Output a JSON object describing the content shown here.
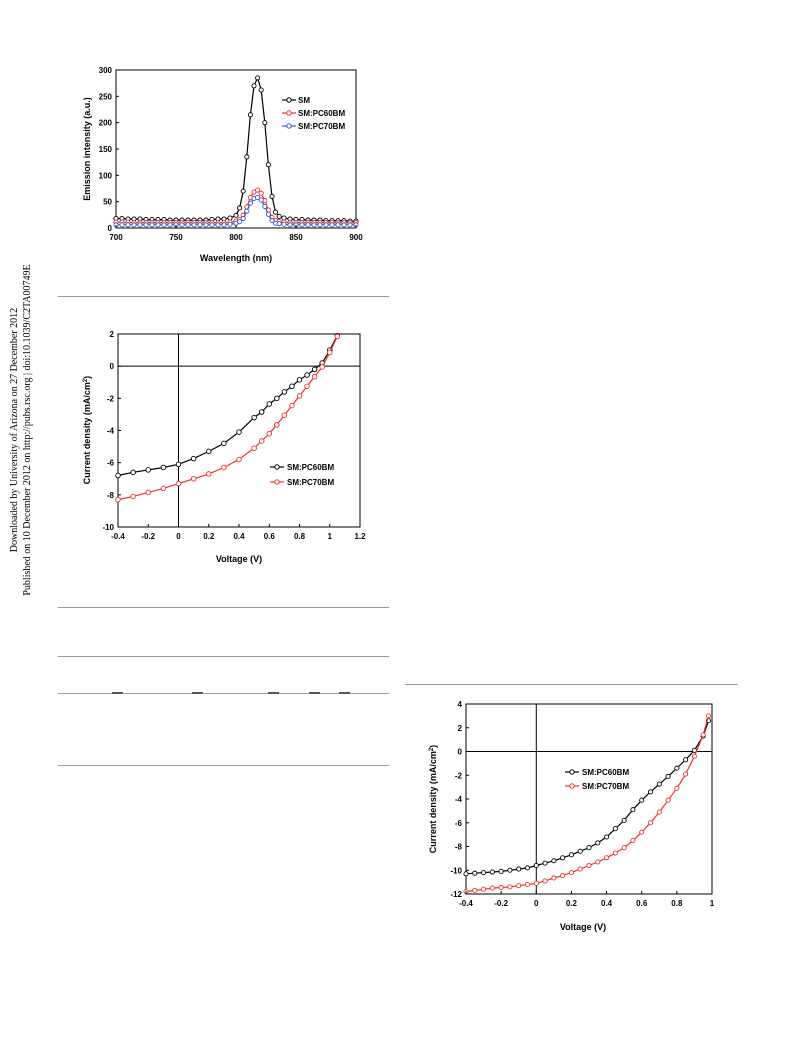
{
  "sidebar": {
    "line1": "Downloaded by University of Arizona on 27 December 2012",
    "line2": "Published on 10 December 2012 on http://pubs.rsc.org | doi:10.1039/C2TA00749E"
  },
  "figures": {
    "emission": {
      "ylabel": "Emission intensity (a.u.)",
      "xlabel": "Wavelength (nm)",
      "xticks": [
        "700",
        "750",
        "800",
        "850",
        "900"
      ],
      "yticks": [
        "0",
        "50",
        "100",
        "150",
        "200",
        "250",
        "300"
      ]
    },
    "jv1": {
      "ylabel": "Current density (mA/cm",
      "ylabel_sup": "2",
      "ylabel_close": ")",
      "xlabel": "Voltage (V)",
      "xticks": [
        "-0.4",
        "-0.2",
        "0",
        "0.2",
        "0.4",
        "0.6",
        "0.8",
        "1",
        "1.2"
      ],
      "yticks": [
        "2",
        "0",
        "-2",
        "-4",
        "-6",
        "-8",
        "-10"
      ]
    },
    "jv2": {
      "ylabel": "Current density (mA/cm",
      "ylabel_sup": "2",
      "ylabel_close": ")",
      "xlabel": "Voltage (V)",
      "xticks": [
        "-0.4",
        "-0.2",
        "0",
        "0.2",
        "0.4",
        "0.6",
        "0.8",
        "1"
      ],
      "yticks": [
        "4",
        "2",
        "0",
        "-2",
        "-4",
        "-6",
        "-8",
        "-10",
        "-12"
      ]
    }
  },
  "chart_data": [
    {
      "type": "line",
      "xlabel": "Wavelength (nm)",
      "ylabel": "Emission intensity (a.u.)",
      "xlim": [
        700,
        900
      ],
      "ylim": [
        0,
        300
      ],
      "grid": false,
      "legend_position": "top-right",
      "series": [
        {
          "name": "SM",
          "color": "#000000",
          "x": [
            700,
            705,
            710,
            715,
            720,
            725,
            730,
            735,
            740,
            745,
            750,
            755,
            760,
            765,
            770,
            775,
            780,
            785,
            790,
            795,
            800,
            803,
            806,
            809,
            812,
            815,
            818,
            821,
            824,
            827,
            830,
            833,
            836,
            840,
            845,
            850,
            855,
            860,
            865,
            870,
            875,
            880,
            885,
            890,
            895,
            900
          ],
          "y": [
            18,
            18,
            17,
            17,
            17,
            16,
            16,
            16,
            16,
            15,
            15,
            15,
            15,
            15,
            15,
            15,
            16,
            17,
            17,
            19,
            24,
            38,
            70,
            135,
            215,
            270,
            285,
            262,
            200,
            120,
            60,
            30,
            22,
            19,
            17,
            16,
            16,
            15,
            15,
            15,
            14,
            14,
            14,
            14,
            13,
            13
          ]
        },
        {
          "name": "SM:PC60BM",
          "color": "#e8332e",
          "x": [
            700,
            705,
            710,
            715,
            720,
            725,
            730,
            735,
            740,
            745,
            750,
            755,
            760,
            765,
            770,
            775,
            780,
            785,
            790,
            795,
            800,
            803,
            806,
            809,
            812,
            815,
            818,
            821,
            824,
            827,
            830,
            833,
            836,
            840,
            845,
            850,
            855,
            860,
            865,
            870,
            875,
            880,
            885,
            890,
            895,
            900
          ],
          "y": [
            11,
            11,
            11,
            10,
            10,
            10,
            10,
            10,
            10,
            10,
            10,
            10,
            10,
            10,
            10,
            10,
            10,
            10,
            10,
            11,
            13,
            16,
            24,
            40,
            58,
            68,
            72,
            66,
            52,
            34,
            20,
            14,
            12,
            11,
            10,
            10,
            10,
            10,
            10,
            10,
            10,
            10,
            10,
            10,
            10,
            10
          ]
        },
        {
          "name": "SM:PC70BM",
          "color": "#3c55c8",
          "x": [
            700,
            705,
            710,
            715,
            720,
            725,
            730,
            735,
            740,
            745,
            750,
            755,
            760,
            765,
            770,
            775,
            780,
            785,
            790,
            795,
            800,
            803,
            806,
            809,
            812,
            815,
            818,
            821,
            824,
            827,
            830,
            833,
            836,
            840,
            845,
            850,
            855,
            860,
            865,
            870,
            875,
            880,
            885,
            890,
            895,
            900
          ],
          "y": [
            6,
            6,
            6,
            6,
            6,
            6,
            6,
            6,
            6,
            6,
            6,
            6,
            6,
            6,
            6,
            6,
            6,
            6,
            6,
            7,
            9,
            12,
            18,
            32,
            47,
            56,
            58,
            53,
            41,
            26,
            14,
            9,
            8,
            7,
            6,
            6,
            6,
            6,
            6,
            6,
            6,
            6,
            6,
            6,
            6,
            6
          ]
        }
      ]
    },
    {
      "type": "line",
      "xlabel": "Voltage (V)",
      "ylabel": "Current density (mA/cm2)",
      "xlim": [
        -0.4,
        1.2
      ],
      "ylim": [
        -10,
        2
      ],
      "grid": false,
      "legend_position": "right",
      "series": [
        {
          "name": "SM:PC60BM",
          "color": "#000000",
          "x": [
            -0.4,
            -0.3,
            -0.2,
            -0.1,
            0,
            0.1,
            0.2,
            0.3,
            0.4,
            0.5,
            0.55,
            0.6,
            0.65,
            0.7,
            0.75,
            0.8,
            0.85,
            0.9,
            0.95,
            1.0,
            1.05
          ],
          "y": [
            -6.8,
            -6.6,
            -6.45,
            -6.3,
            -6.1,
            -5.75,
            -5.3,
            -4.8,
            -4.1,
            -3.2,
            -2.85,
            -2.35,
            -2.0,
            -1.6,
            -1.25,
            -0.85,
            -0.55,
            -0.2,
            0.2,
            1.0,
            1.9
          ]
        },
        {
          "name": "SM:PC70BM",
          "color": "#e8332e",
          "x": [
            -0.4,
            -0.3,
            -0.2,
            -0.1,
            0,
            0.1,
            0.2,
            0.3,
            0.4,
            0.5,
            0.55,
            0.6,
            0.65,
            0.7,
            0.75,
            0.8,
            0.85,
            0.9,
            0.95,
            1.0,
            1.05
          ],
          "y": [
            -8.3,
            -8.1,
            -7.85,
            -7.6,
            -7.3,
            -7.0,
            -6.7,
            -6.3,
            -5.8,
            -5.1,
            -4.65,
            -4.2,
            -3.65,
            -3.05,
            -2.45,
            -1.85,
            -1.25,
            -0.65,
            -0.05,
            0.85,
            1.85
          ]
        }
      ]
    },
    {
      "type": "line",
      "xlabel": "Voltage (V)",
      "ylabel": "Current density (mA/cm2)",
      "xlim": [
        -0.4,
        1.0
      ],
      "ylim": [
        -12,
        4
      ],
      "grid": false,
      "legend_position": "right",
      "series": [
        {
          "name": "SM:PC60BM",
          "color": "#000000",
          "x": [
            -0.4,
            -0.35,
            -0.3,
            -0.25,
            -0.2,
            -0.15,
            -0.1,
            -0.05,
            0,
            0.05,
            0.1,
            0.15,
            0.2,
            0.25,
            0.3,
            0.35,
            0.4,
            0.45,
            0.5,
            0.55,
            0.6,
            0.65,
            0.7,
            0.75,
            0.8,
            0.85,
            0.9,
            0.95,
            0.98
          ],
          "y": [
            -10.3,
            -10.25,
            -10.2,
            -10.15,
            -10.1,
            -10.0,
            -9.9,
            -9.8,
            -9.6,
            -9.4,
            -9.2,
            -8.95,
            -8.7,
            -8.4,
            -8.1,
            -7.7,
            -7.2,
            -6.5,
            -5.8,
            -4.9,
            -4.1,
            -3.4,
            -2.75,
            -2.1,
            -1.4,
            -0.7,
            0.1,
            1.3,
            2.6
          ]
        },
        {
          "name": "SM:PC70BM",
          "color": "#e8332e",
          "x": [
            -0.4,
            -0.35,
            -0.3,
            -0.25,
            -0.2,
            -0.15,
            -0.1,
            -0.05,
            0,
            0.05,
            0.1,
            0.15,
            0.2,
            0.25,
            0.3,
            0.35,
            0.4,
            0.45,
            0.5,
            0.55,
            0.6,
            0.65,
            0.7,
            0.75,
            0.8,
            0.85,
            0.9,
            0.95,
            0.98
          ],
          "y": [
            -11.8,
            -11.7,
            -11.6,
            -11.5,
            -11.45,
            -11.4,
            -11.3,
            -11.2,
            -11.1,
            -10.9,
            -10.65,
            -10.45,
            -10.2,
            -9.9,
            -9.6,
            -9.3,
            -8.95,
            -8.55,
            -8.1,
            -7.5,
            -6.8,
            -6.0,
            -5.1,
            -4.1,
            -3.1,
            -1.9,
            -0.4,
            1.4,
            3.0
          ]
        }
      ]
    }
  ]
}
